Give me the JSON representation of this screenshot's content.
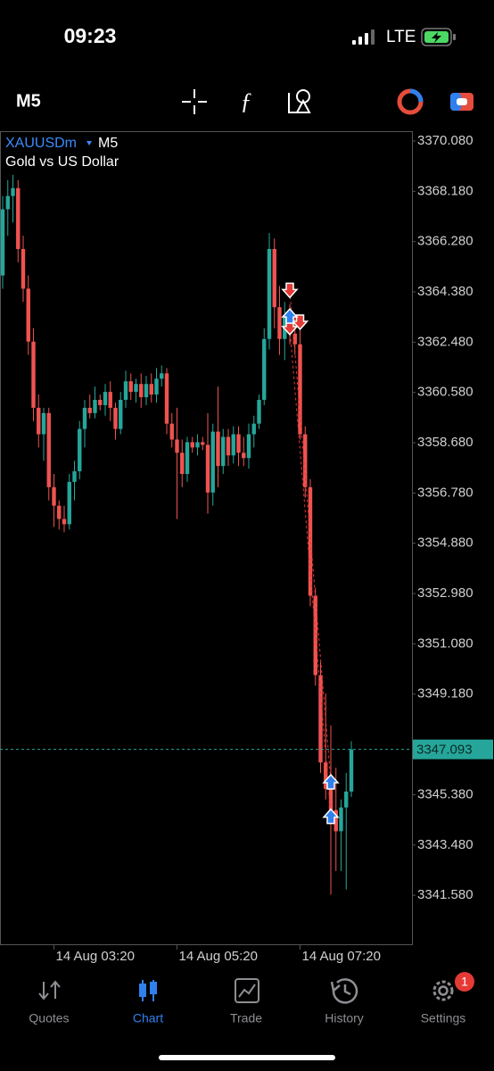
{
  "status_bar": {
    "time": "09:23",
    "network": "LTE"
  },
  "toolbar": {
    "timeframe": "M5"
  },
  "chart_data": {
    "type": "candlestick",
    "symbol": "XAUUSDm",
    "timeframe": "M5",
    "description": "Gold vs US Dollar",
    "categories": [
      null,
      null,
      null,
      null,
      null,
      null,
      null,
      null,
      null,
      null,
      "14 Aug 03:20",
      null,
      null,
      null,
      null,
      null,
      null,
      null,
      null,
      null,
      null,
      null,
      null,
      null,
      null,
      null,
      null,
      null,
      null,
      null,
      null,
      null,
      null,
      null,
      "14 Aug 05:20",
      null,
      null,
      null,
      null,
      null,
      null,
      null,
      null,
      null,
      null,
      null,
      null,
      null,
      null,
      null,
      null,
      null,
      null,
      null,
      null,
      null,
      null,
      null,
      "14 Aug 07:20",
      null,
      null,
      null,
      null,
      null,
      null,
      null,
      null,
      null,
      null
    ],
    "open": [
      3365.0,
      3367.5,
      3368.0,
      3368.3,
      3366.0,
      3364.5,
      3362.5,
      3360.0,
      3359.0,
      3359.8,
      3357.0,
      3356.3,
      3355.8,
      3355.6,
      3357.2,
      3357.6,
      3359.2,
      3360.0,
      3359.8,
      3360.3,
      3360.1,
      3360.6,
      3360.0,
      3359.2,
      3360.3,
      3361.0,
      3360.6,
      3360.9,
      3360.4,
      3360.9,
      3360.5,
      3361.1,
      3361.3,
      3359.4,
      3358.8,
      3358.3,
      3357.5,
      3358.7,
      3358.5,
      3358.7,
      3358.6,
      3356.8,
      3359.1,
      3357.8,
      3358.9,
      3358.2,
      3359.0,
      3358.3,
      3358.1,
      3359.0,
      3359.4,
      3360.3,
      3362.6,
      3366.0,
      3363.8,
      3362.6,
      3363.5,
      3362.8,
      3362.4,
      3359.0,
      3357.0,
      3352.9,
      3349.9,
      3346.6,
      3345.6,
      3344.8,
      3344.0,
      3344.9,
      3345.5
    ],
    "high": [
      3368.0,
      3368.6,
      3368.8,
      3368.6,
      3366.5,
      3365.0,
      3363.0,
      3360.5,
      3360.0,
      3360.0,
      3357.5,
      3356.5,
      3356.3,
      3357.5,
      3358.0,
      3359.5,
      3360.3,
      3360.5,
      3360.8,
      3360.5,
      3360.9,
      3361.0,
      3360.2,
      3360.6,
      3361.4,
      3361.3,
      3361.1,
      3361.3,
      3361.2,
      3361.3,
      3361.5,
      3361.6,
      3361.5,
      3359.8,
      3360.0,
      3358.8,
      3358.9,
      3358.9,
      3359.0,
      3358.9,
      3359.8,
      3359.4,
      3360.8,
      3359.2,
      3359.2,
      3359.3,
      3359.3,
      3358.9,
      3359.4,
      3359.7,
      3360.5,
      3363.0,
      3366.6,
      3366.4,
      3364.6,
      3364.0,
      3363.9,
      3363.4,
      3363.0,
      3359.3,
      3357.3,
      3353.2,
      3350.4,
      3349.2,
      3348.0,
      3346.4,
      3345.2,
      3346.2,
      3347.4
    ],
    "low": [
      3364.5,
      3366.5,
      3367.0,
      3365.5,
      3364.0,
      3362.0,
      3359.5,
      3358.5,
      3358.0,
      3356.5,
      3355.5,
      3355.4,
      3355.3,
      3355.4,
      3356.5,
      3357.3,
      3358.5,
      3359.6,
      3359.6,
      3359.9,
      3359.7,
      3359.5,
      3358.8,
      3359.0,
      3360.0,
      3360.3,
      3360.2,
      3360.0,
      3360.1,
      3360.2,
      3360.2,
      3360.8,
      3359.0,
      3358.5,
      3355.8,
      3357.0,
      3357.2,
      3358.3,
      3358.2,
      3358.4,
      3356.0,
      3356.3,
      3357.0,
      3357.5,
      3357.8,
      3357.9,
      3357.8,
      3357.8,
      3357.7,
      3358.5,
      3359.2,
      3360.1,
      3362.2,
      3363.0,
      3362.0,
      3361.8,
      3362.4,
      3362.0,
      3358.8,
      3356.6,
      3352.5,
      3349.5,
      3346.2,
      3345.2,
      3341.6,
      3342.5,
      3342.5,
      3341.8,
      3345.3
    ],
    "close": [
      3367.5,
      3368.0,
      3368.3,
      3366.0,
      3364.5,
      3362.5,
      3360.0,
      3359.0,
      3359.8,
      3357.0,
      3356.3,
      3355.8,
      3355.6,
      3357.2,
      3357.6,
      3359.2,
      3360.0,
      3359.8,
      3360.3,
      3360.1,
      3360.6,
      3360.0,
      3359.2,
      3360.3,
      3361.0,
      3360.6,
      3360.9,
      3360.4,
      3360.9,
      3360.5,
      3361.1,
      3361.3,
      3359.4,
      3358.8,
      3358.3,
      3357.5,
      3358.7,
      3358.5,
      3358.7,
      3358.6,
      3356.8,
      3359.1,
      3357.8,
      3358.9,
      3358.2,
      3359.0,
      3358.3,
      3358.1,
      3359.0,
      3359.4,
      3360.3,
      3362.6,
      3366.0,
      3363.8,
      3362.6,
      3363.5,
      3362.8,
      3362.4,
      3359.0,
      3357.0,
      3352.9,
      3349.9,
      3346.6,
      3345.6,
      3344.8,
      3344.0,
      3344.9,
      3345.5,
      3347.09
    ],
    "up_color": "#26a69a",
    "down_color": "#ef5350",
    "ylim": [
      3339.73,
      3370.45
    ],
    "yticks": [
      {
        "value": 3370.08,
        "label": "3370.080"
      },
      {
        "value": 3368.18,
        "label": "3368.180"
      },
      {
        "value": 3366.28,
        "label": "3366.280"
      },
      {
        "value": 3364.38,
        "label": "3364.380"
      },
      {
        "value": 3362.48,
        "label": "3362.480"
      },
      {
        "value": 3360.58,
        "label": "3360.580"
      },
      {
        "value": 3358.68,
        "label": "3358.680"
      },
      {
        "value": 3356.78,
        "label": "3356.780"
      },
      {
        "value": 3354.88,
        "label": "3354.880"
      },
      {
        "value": 3352.98,
        "label": "3352.980"
      },
      {
        "value": 3351.08,
        "label": "3351.080"
      },
      {
        "value": 3349.18,
        "label": "3349.180"
      },
      {
        "value": 3345.38,
        "label": "3345.380"
      },
      {
        "value": 3343.48,
        "label": "3343.480"
      },
      {
        "value": 3341.58,
        "label": "3341.580"
      }
    ],
    "current_price": 3347.093,
    "trade_marks": [
      {
        "x": 56,
        "value": 3364.4,
        "direction": "down",
        "color": "#e53935"
      },
      {
        "x": 56,
        "value": 3363.0,
        "direction": "down",
        "color": "#e53935"
      },
      {
        "x": 58,
        "value": 3363.2,
        "direction": "down",
        "color": "#e53935"
      },
      {
        "x": 56,
        "value": 3363.5,
        "direction": "up",
        "color": "#2f80ed"
      },
      {
        "x": 64,
        "value": 3345.9,
        "direction": "up",
        "color": "#2f80ed"
      },
      {
        "x": 64,
        "value": 3344.6,
        "direction": "up",
        "color": "#2f80ed"
      }
    ]
  },
  "nav": {
    "items": [
      "Quotes",
      "Chart",
      "Trade",
      "History",
      "Settings"
    ],
    "badge": 1
  }
}
